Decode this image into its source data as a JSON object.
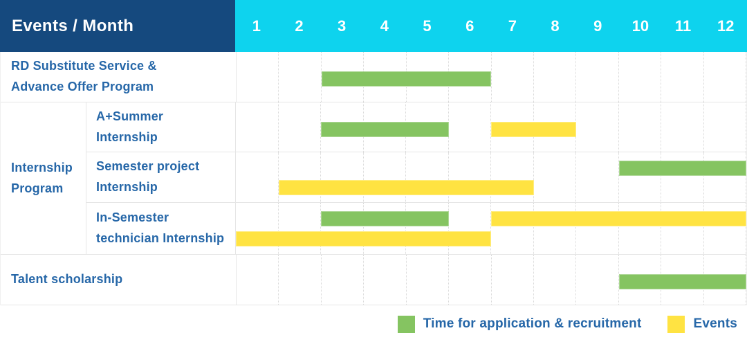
{
  "header": {
    "title": "Events / Month",
    "months": [
      "1",
      "2",
      "3",
      "4",
      "5",
      "6",
      "7",
      "8",
      "9",
      "10",
      "11",
      "12"
    ]
  },
  "colors": {
    "header_bg": "#15497E",
    "month_bar_bg": "#0ED3EE",
    "label_text": "#2667A8",
    "application": "#85C461",
    "events": "#FFE342"
  },
  "rows": [
    {
      "label": "RD Substitute Service &\nAdvance Offer Program"
    },
    {
      "label": "A+Summer\nInternship"
    },
    {
      "label": "Semester project\nInternship"
    },
    {
      "label": "In-Semester\ntechnician Internship"
    },
    {
      "label": "Talent scholarship"
    }
  ],
  "group": {
    "label": "Internship\nProgram"
  },
  "legend": [
    {
      "key": "application",
      "label": "Time for application & recruitment",
      "color": "#85C461"
    },
    {
      "key": "events",
      "label": "Events",
      "color": "#FFE342"
    }
  ],
  "chart_data": {
    "type": "gantt",
    "unit": "month",
    "x_domain": [
      1,
      12
    ],
    "x_ticks": [
      "1",
      "2",
      "3",
      "4",
      "5",
      "6",
      "7",
      "8",
      "9",
      "10",
      "11",
      "12"
    ],
    "legend": [
      {
        "series": "Time for application & recruitment",
        "color": "#85C461"
      },
      {
        "series": "Events",
        "color": "#FFE342"
      }
    ],
    "rows": [
      {
        "name": "RD Substitute Service & Advance Offer Program",
        "group": null,
        "bars": [
          {
            "key": "application",
            "series": "Time for application & recruitment",
            "start_month": 3,
            "end_month": 6,
            "lane": "single"
          }
        ]
      },
      {
        "name": "A+Summer Internship",
        "group": "Internship Program",
        "bars": [
          {
            "key": "application",
            "series": "Time for application & recruitment",
            "start_month": 3,
            "end_month": 5,
            "lane": "single"
          },
          {
            "key": "events",
            "series": "Events",
            "start_month": 7,
            "end_month": 8,
            "lane": "single"
          }
        ]
      },
      {
        "name": "Semester project Internship",
        "group": "Internship Program",
        "bars": [
          {
            "key": "application",
            "series": "Time for application & recruitment",
            "start_month": 10,
            "end_month": 12,
            "lane": "top"
          },
          {
            "key": "events",
            "series": "Events",
            "start_month": 2,
            "end_month": 7,
            "lane": "bottom"
          }
        ]
      },
      {
        "name": "In-Semester technician Internship",
        "group": "Internship Program",
        "bars": [
          {
            "key": "application",
            "series": "Time for application & recruitment",
            "start_month": 3,
            "end_month": 5,
            "lane": "top"
          },
          {
            "key": "events",
            "series": "Events",
            "start_month": 7,
            "end_month": 12,
            "lane": "top"
          },
          {
            "key": "events",
            "series": "Events",
            "start_month": 1,
            "end_month": 6,
            "lane": "bottom"
          }
        ]
      },
      {
        "name": "Talent scholarship",
        "group": null,
        "bars": [
          {
            "key": "application",
            "series": "Time for application & recruitment",
            "start_month": 10,
            "end_month": 12,
            "lane": "single"
          }
        ]
      }
    ]
  }
}
